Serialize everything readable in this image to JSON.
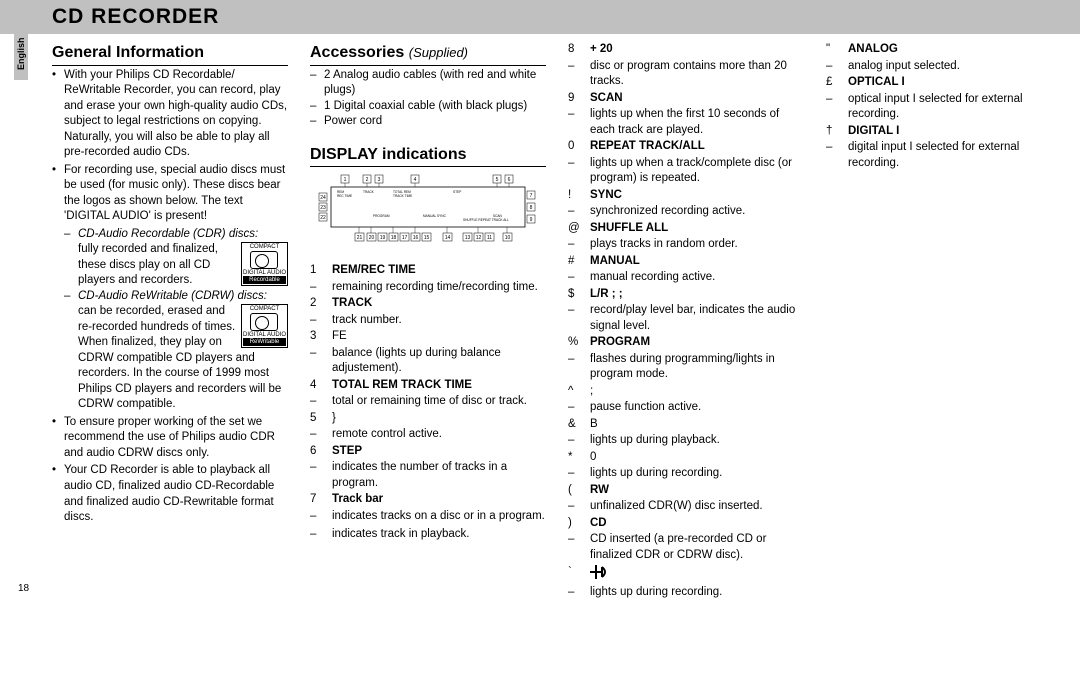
{
  "header": {
    "title": "CD RECORDER"
  },
  "lang_tab": "English",
  "page_number": "18",
  "col1": {
    "h": "General Information",
    "bullets": [
      "With your Philips CD Recordable/ ReWritable Recorder, you can record, play and erase your own high-quality audio CDs, subject to legal restrictions on copying. Naturally, you will also be able to play all pre-recorded audio CDs.",
      "For recording use, special audio discs must be used (for music only). These discs bear the logos as shown below. The text 'DIGITAL AUDIO' is present!",
      "To ensure proper working of the set we recommend the use of Philips audio CDR and audio CDRW discs only.",
      "Your CD Recorder is able to playback all audio CD,  finalized audio CD-Recordable and finalized audio CD-Rewritable format discs."
    ],
    "sub_cdr": "CD-Audio Recordable (CDR) discs:",
    "sub_cdr_txt": "fully recorded and finalized, these discs play on all CD players and recorders.",
    "sub_cdrw": "CD-Audio ReWritable (CDRW) discs:",
    "sub_cdrw_txt": "can be recorded, erased and re-recorded hundreds of times. When finalized, they play on CDRW compatible CD players and recorders. In the course of 1999 most Philips CD players and recorders will be CDRW compatible.",
    "badge1": {
      "top": "COMPACT",
      "bot": "DIGITAL AUDIO",
      "tag": "Recordable"
    },
    "badge2": {
      "top": "COMPACT",
      "bot": "DIGITAL AUDIO",
      "tag": "ReWritable"
    }
  },
  "col2": {
    "h_acc": "Accessories",
    "h_acc_sub": "(Supplied)",
    "acc_items": [
      "2 Analog audio cables (with red and white plugs)",
      "1 Digital coaxial cable (with black plugs)",
      "Power cord"
    ],
    "h_disp": "DISPLAY indications",
    "items": [
      {
        "n": "1",
        "t": "REM/REC TIME",
        "b": true,
        "d": "remaining recording time/recording time."
      },
      {
        "n": "2",
        "t": "TRACK",
        "b": true,
        "d": "track number."
      },
      {
        "n": "3",
        "t": "FE",
        "b": false,
        "d": "balance (lights up during balance adjustement)."
      },
      {
        "n": "4",
        "t": "TOTAL REM TRACK TIME",
        "b": true,
        "d": "total or remaining time of disc or track."
      },
      {
        "n": "5",
        "t": "}",
        "b": false,
        "d": "remote control active."
      },
      {
        "n": "6",
        "t": "STEP",
        "b": true,
        "d": "indicates the number of tracks in a program."
      },
      {
        "n": "7",
        "t": "Track bar",
        "b": true,
        "d": "indicates tracks on a disc or in a program."
      },
      {
        "n": "",
        "t": "",
        "b": false,
        "d": "indicates track in playback."
      }
    ]
  },
  "col3": {
    "items": [
      {
        "n": "8",
        "t": "+ 20",
        "b": true,
        "d": "disc or program contains more than 20 tracks."
      },
      {
        "n": "9",
        "t": "SCAN",
        "b": true,
        "d": "lights up when the first 10 seconds of each track are played."
      },
      {
        "n": "0",
        "t": "REPEAT TRACK/ALL",
        "b": true,
        "d": "lights up when a track/complete disc (or program) is repeated."
      },
      {
        "n": "!",
        "t": "SYNC",
        "b": true,
        "d": "synchronized recording active."
      },
      {
        "n": "@",
        "t": "SHUFFLE ALL",
        "b": true,
        "d": "plays tracks in random order."
      },
      {
        "n": "#",
        "t": "MANUAL",
        "b": true,
        "d": "manual recording active."
      },
      {
        "n": "$",
        "t": "L/R ; ;",
        "b": true,
        "d": "record/play level bar, indicates the audio signal level."
      },
      {
        "n": "%",
        "t": "PROGRAM",
        "b": true,
        "d": "flashes during programming/lights in program mode."
      },
      {
        "n": "^",
        "t": ";",
        "b": false,
        "d": "pause function active."
      },
      {
        "n": "&",
        "t": "B",
        "b": false,
        "d": "lights up during playback."
      },
      {
        "n": "*",
        "t": "0",
        "b": false,
        "d": "lights up during recording."
      },
      {
        "n": "(",
        "t": "RW",
        "b": true,
        "d": "unfinalized CDR(W) disc inserted."
      },
      {
        "n": ")",
        "t": "CD",
        "b": true,
        "d": "CD inserted (a pre-recorded CD or finalized CDR or CDRW disc)."
      }
    ],
    "last_n": "`",
    "last_d": "lights up during recording."
  },
  "col4": {
    "items": [
      {
        "n": "\"",
        "t": "ANALOG",
        "b": true,
        "d": "analog input selected."
      },
      {
        "n": "£",
        "t": "OPTICAL I",
        "b": true,
        "d": "optical input I selected for external recording."
      },
      {
        "n": "†",
        "t": "DIGITAL I",
        "b": true,
        "d": "digital input I selected for external recording."
      }
    ]
  }
}
